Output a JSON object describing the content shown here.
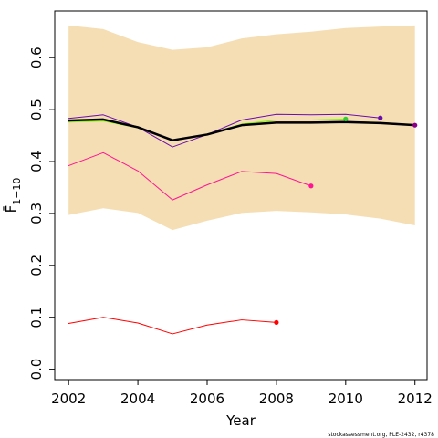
{
  "chart_data": {
    "type": "line",
    "xlabel": "Year",
    "ylabel": "F̄",
    "ylabel_subscript": "1−10",
    "xlim": [
      2001.6,
      2012.35
    ],
    "ylim": [
      -0.02,
      0.69
    ],
    "x_ticks": [
      2002,
      2004,
      2006,
      2008,
      2010,
      2012
    ],
    "y_ticks": [
      0.0,
      0.1,
      0.2,
      0.3,
      0.4,
      0.5,
      0.6
    ],
    "grid": false,
    "legend": "none",
    "band": {
      "color": "#f5deb3",
      "x": [
        2002,
        2003,
        2004,
        2005,
        2006,
        2007,
        2008,
        2009,
        2010,
        2011,
        2012
      ],
      "upper": [
        0.662,
        0.655,
        0.63,
        0.615,
        0.62,
        0.637,
        0.645,
        0.65,
        0.657,
        0.66,
        0.662
      ],
      "lower": [
        0.297,
        0.31,
        0.301,
        0.268,
        0.286,
        0.301,
        0.305,
        0.302,
        0.298,
        0.29,
        0.277
      ]
    },
    "series": [
      {
        "color": "#ff0000",
        "width": 1,
        "x": [
          2002,
          2003,
          2004,
          2005,
          2006,
          2007,
          2008
        ],
        "values": [
          0.088,
          0.1,
          0.089,
          0.068,
          0.085,
          0.095,
          0.09
        ]
      },
      {
        "color": "#ff1493",
        "width": 1,
        "x": [
          2002,
          2003,
          2004,
          2005,
          2006,
          2007,
          2008,
          2009
        ],
        "values": [
          0.392,
          0.417,
          0.382,
          0.326,
          0.355,
          0.381,
          0.377,
          0.353
        ]
      },
      {
        "color": "#7cfc00",
        "width": 1,
        "x": [
          2002,
          2003,
          2004,
          2005,
          2006,
          2007,
          2008,
          2009,
          2010
        ],
        "values": [
          0.476,
          0.478,
          0.465,
          0.44,
          0.453,
          0.472,
          0.48,
          0.48,
          0.482
        ]
      },
      {
        "color": "#6a0dad",
        "width": 1,
        "x": [
          2002,
          2003,
          2004,
          2005,
          2006,
          2007,
          2008,
          2009,
          2010,
          2011
        ],
        "values": [
          0.483,
          0.49,
          0.466,
          0.428,
          0.452,
          0.48,
          0.491,
          0.49,
          0.491,
          0.484
        ]
      },
      {
        "color": "#8b008b",
        "width": 1,
        "x": [
          2002,
          2003,
          2004,
          2005,
          2006,
          2007,
          2008,
          2009,
          2010,
          2011,
          2012
        ],
        "values": [
          0.478,
          0.481,
          0.467,
          0.44,
          0.452,
          0.47,
          0.476,
          0.476,
          0.477,
          0.475,
          0.471
        ]
      },
      {
        "color": "#000000",
        "width": 2.5,
        "x": [
          2002,
          2003,
          2004,
          2005,
          2006,
          2007,
          2008,
          2009,
          2010,
          2011,
          2012
        ],
        "values": [
          0.479,
          0.481,
          0.466,
          0.441,
          0.452,
          0.47,
          0.475,
          0.475,
          0.476,
          0.474,
          0.47
        ]
      }
    ],
    "endpoints": [
      {
        "x": 2008,
        "y": 0.09,
        "color": "#ff0000"
      },
      {
        "x": 2009,
        "y": 0.353,
        "color": "#ff1493"
      },
      {
        "x": 2010,
        "y": 0.482,
        "color": "#32cd32"
      },
      {
        "x": 2011,
        "y": 0.484,
        "color": "#6a0dad"
      },
      {
        "x": 2012,
        "y": 0.47,
        "color": "#8b008b"
      }
    ]
  },
  "credit": "stockassessment.org, PLE-2432, r4378"
}
